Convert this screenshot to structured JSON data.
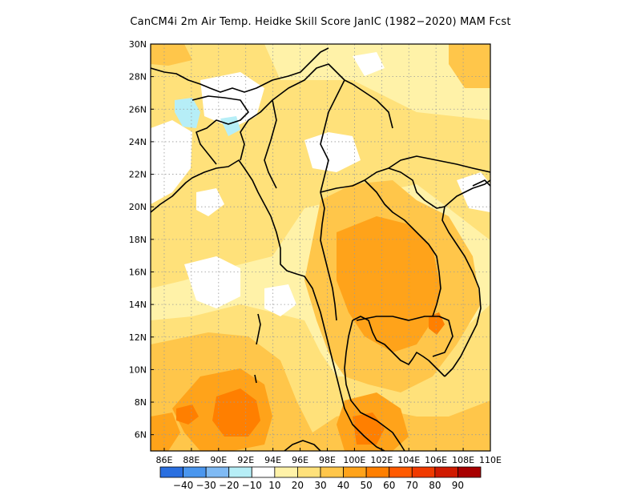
{
  "title": "CanCM4i  2m Air Temp. Heidke Skill Score JanIC (1982−2020) MAM Fcst",
  "map": {
    "lon_range": [
      85,
      110
    ],
    "lat_range": [
      5,
      30
    ],
    "lon_ticks": [
      {
        "value": 86,
        "label": "86E"
      },
      {
        "value": 88,
        "label": "88E"
      },
      {
        "value": 90,
        "label": "90E"
      },
      {
        "value": 92,
        "label": "92E"
      },
      {
        "value": 94,
        "label": "94E"
      },
      {
        "value": 96,
        "label": "96E"
      },
      {
        "value": 98,
        "label": "98E"
      },
      {
        "value": 100,
        "label": "100E"
      },
      {
        "value": 102,
        "label": "102E"
      },
      {
        "value": 104,
        "label": "104E"
      },
      {
        "value": 106,
        "label": "106E"
      },
      {
        "value": 108,
        "label": "108E"
      },
      {
        "value": 110,
        "label": "110E"
      }
    ],
    "lat_ticks": [
      {
        "value": 6,
        "label": "6N"
      },
      {
        "value": 8,
        "label": "8N"
      },
      {
        "value": 10,
        "label": "10N"
      },
      {
        "value": 12,
        "label": "12N"
      },
      {
        "value": 14,
        "label": "14N"
      },
      {
        "value": 16,
        "label": "16N"
      },
      {
        "value": 18,
        "label": "18N"
      },
      {
        "value": 20,
        "label": "20N"
      },
      {
        "value": 22,
        "label": "22N"
      },
      {
        "value": 24,
        "label": "24N"
      },
      {
        "value": 26,
        "label": "26N"
      },
      {
        "value": 28,
        "label": "28N"
      },
      {
        "value": 30,
        "label": "30N"
      }
    ],
    "grid_lines": "dotted",
    "coastline_color": "#000000"
  },
  "colorbar": {
    "colors": [
      "#2a6fe0",
      "#4a96ee",
      "#7fbaf4",
      "#b6eef7",
      "#ffffff",
      "#fff2a8",
      "#ffe17a",
      "#ffc64a",
      "#ffa31a",
      "#ff7f00",
      "#ff5a00",
      "#f03a00",
      "#d01a00",
      "#a80000"
    ],
    "labels": [
      "−40",
      "−30",
      "−20",
      "−10",
      "10",
      "20",
      "30",
      "40",
      "50",
      "60",
      "70",
      "80",
      "90"
    ]
  }
}
